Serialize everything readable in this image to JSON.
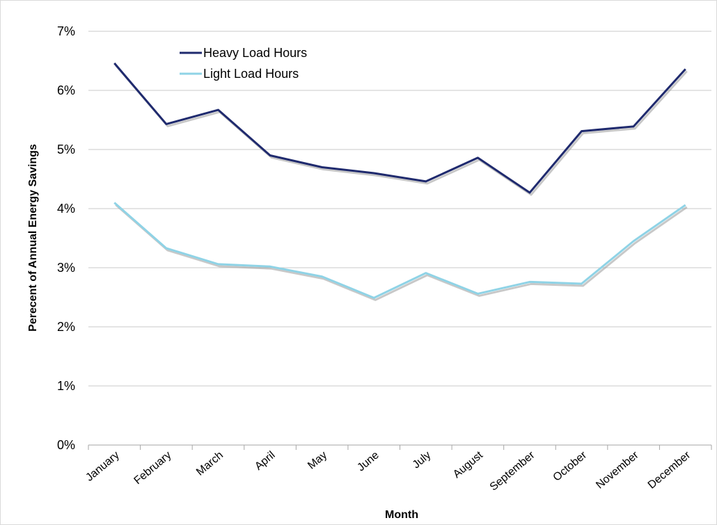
{
  "chart_data": {
    "type": "line",
    "categories": [
      "January",
      "February",
      "March",
      "April",
      "May",
      "June",
      "July",
      "August",
      "September",
      "October",
      "November",
      "December"
    ],
    "series": [
      {
        "name": "Heavy Load Hours",
        "color": "#1f2a6e",
        "values": [
          6.46,
          5.43,
          5.67,
          4.9,
          4.7,
          4.6,
          4.46,
          4.86,
          4.27,
          5.31,
          5.39,
          6.36
        ]
      },
      {
        "name": "Light Load Hours",
        "color": "#8fd3e6",
        "values": [
          4.1,
          3.33,
          3.06,
          3.02,
          2.85,
          2.49,
          2.91,
          2.56,
          2.76,
          2.73,
          3.45,
          4.06
        ]
      }
    ],
    "xlabel": "Month",
    "ylabel": "Perecent of Annual Energy Savings",
    "ylim": [
      0,
      7
    ],
    "yticks": [
      "0%",
      "1%",
      "2%",
      "3%",
      "4%",
      "5%",
      "6%",
      "7%"
    ],
    "grid": true,
    "legend_position": "top-left"
  }
}
